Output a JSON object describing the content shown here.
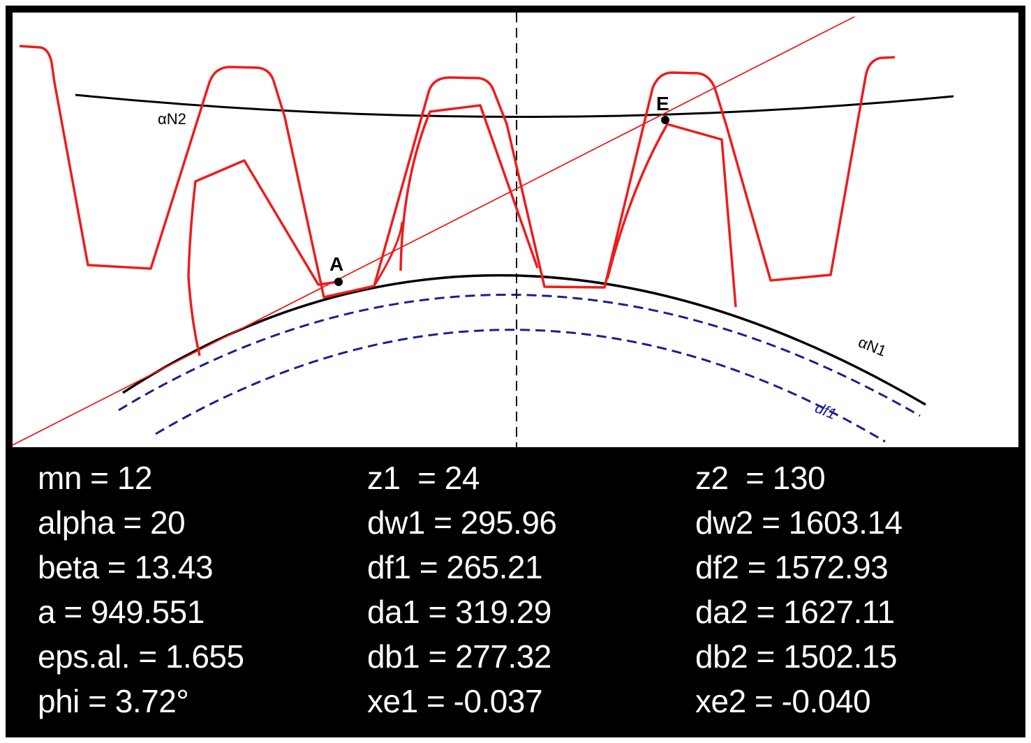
{
  "diagram": {
    "labels": {
      "alpha_n2": "αN2",
      "alpha_n1": "αN1",
      "df1": "df1",
      "point_a": "A",
      "point_e": "E"
    },
    "colors": {
      "tooth_profile": "#ee1c1c",
      "pitch_curves": "#000000",
      "root_circles": "#1a1f8c",
      "centerline": "#000000",
      "panel_background": "#000000",
      "panel_text": "#ffffff"
    }
  },
  "parameters": {
    "col1": [
      "mn = 12",
      "alpha = 20",
      "beta = 13.43",
      "a = 949.551",
      "eps.al. = 1.655",
      "phi = 3.72°"
    ],
    "col2": [
      "z1  = 24",
      "dw1 = 295.96",
      "df1 = 265.21",
      "da1 = 319.29",
      "db1 = 277.32",
      "xe1 = -0.037"
    ],
    "col3": [
      "z2  = 130",
      "dw2 = 1603.14",
      "df2 = 1572.93",
      "da2 = 1627.11",
      "db2 = 1502.15",
      "xe2 = -0.040"
    ]
  }
}
